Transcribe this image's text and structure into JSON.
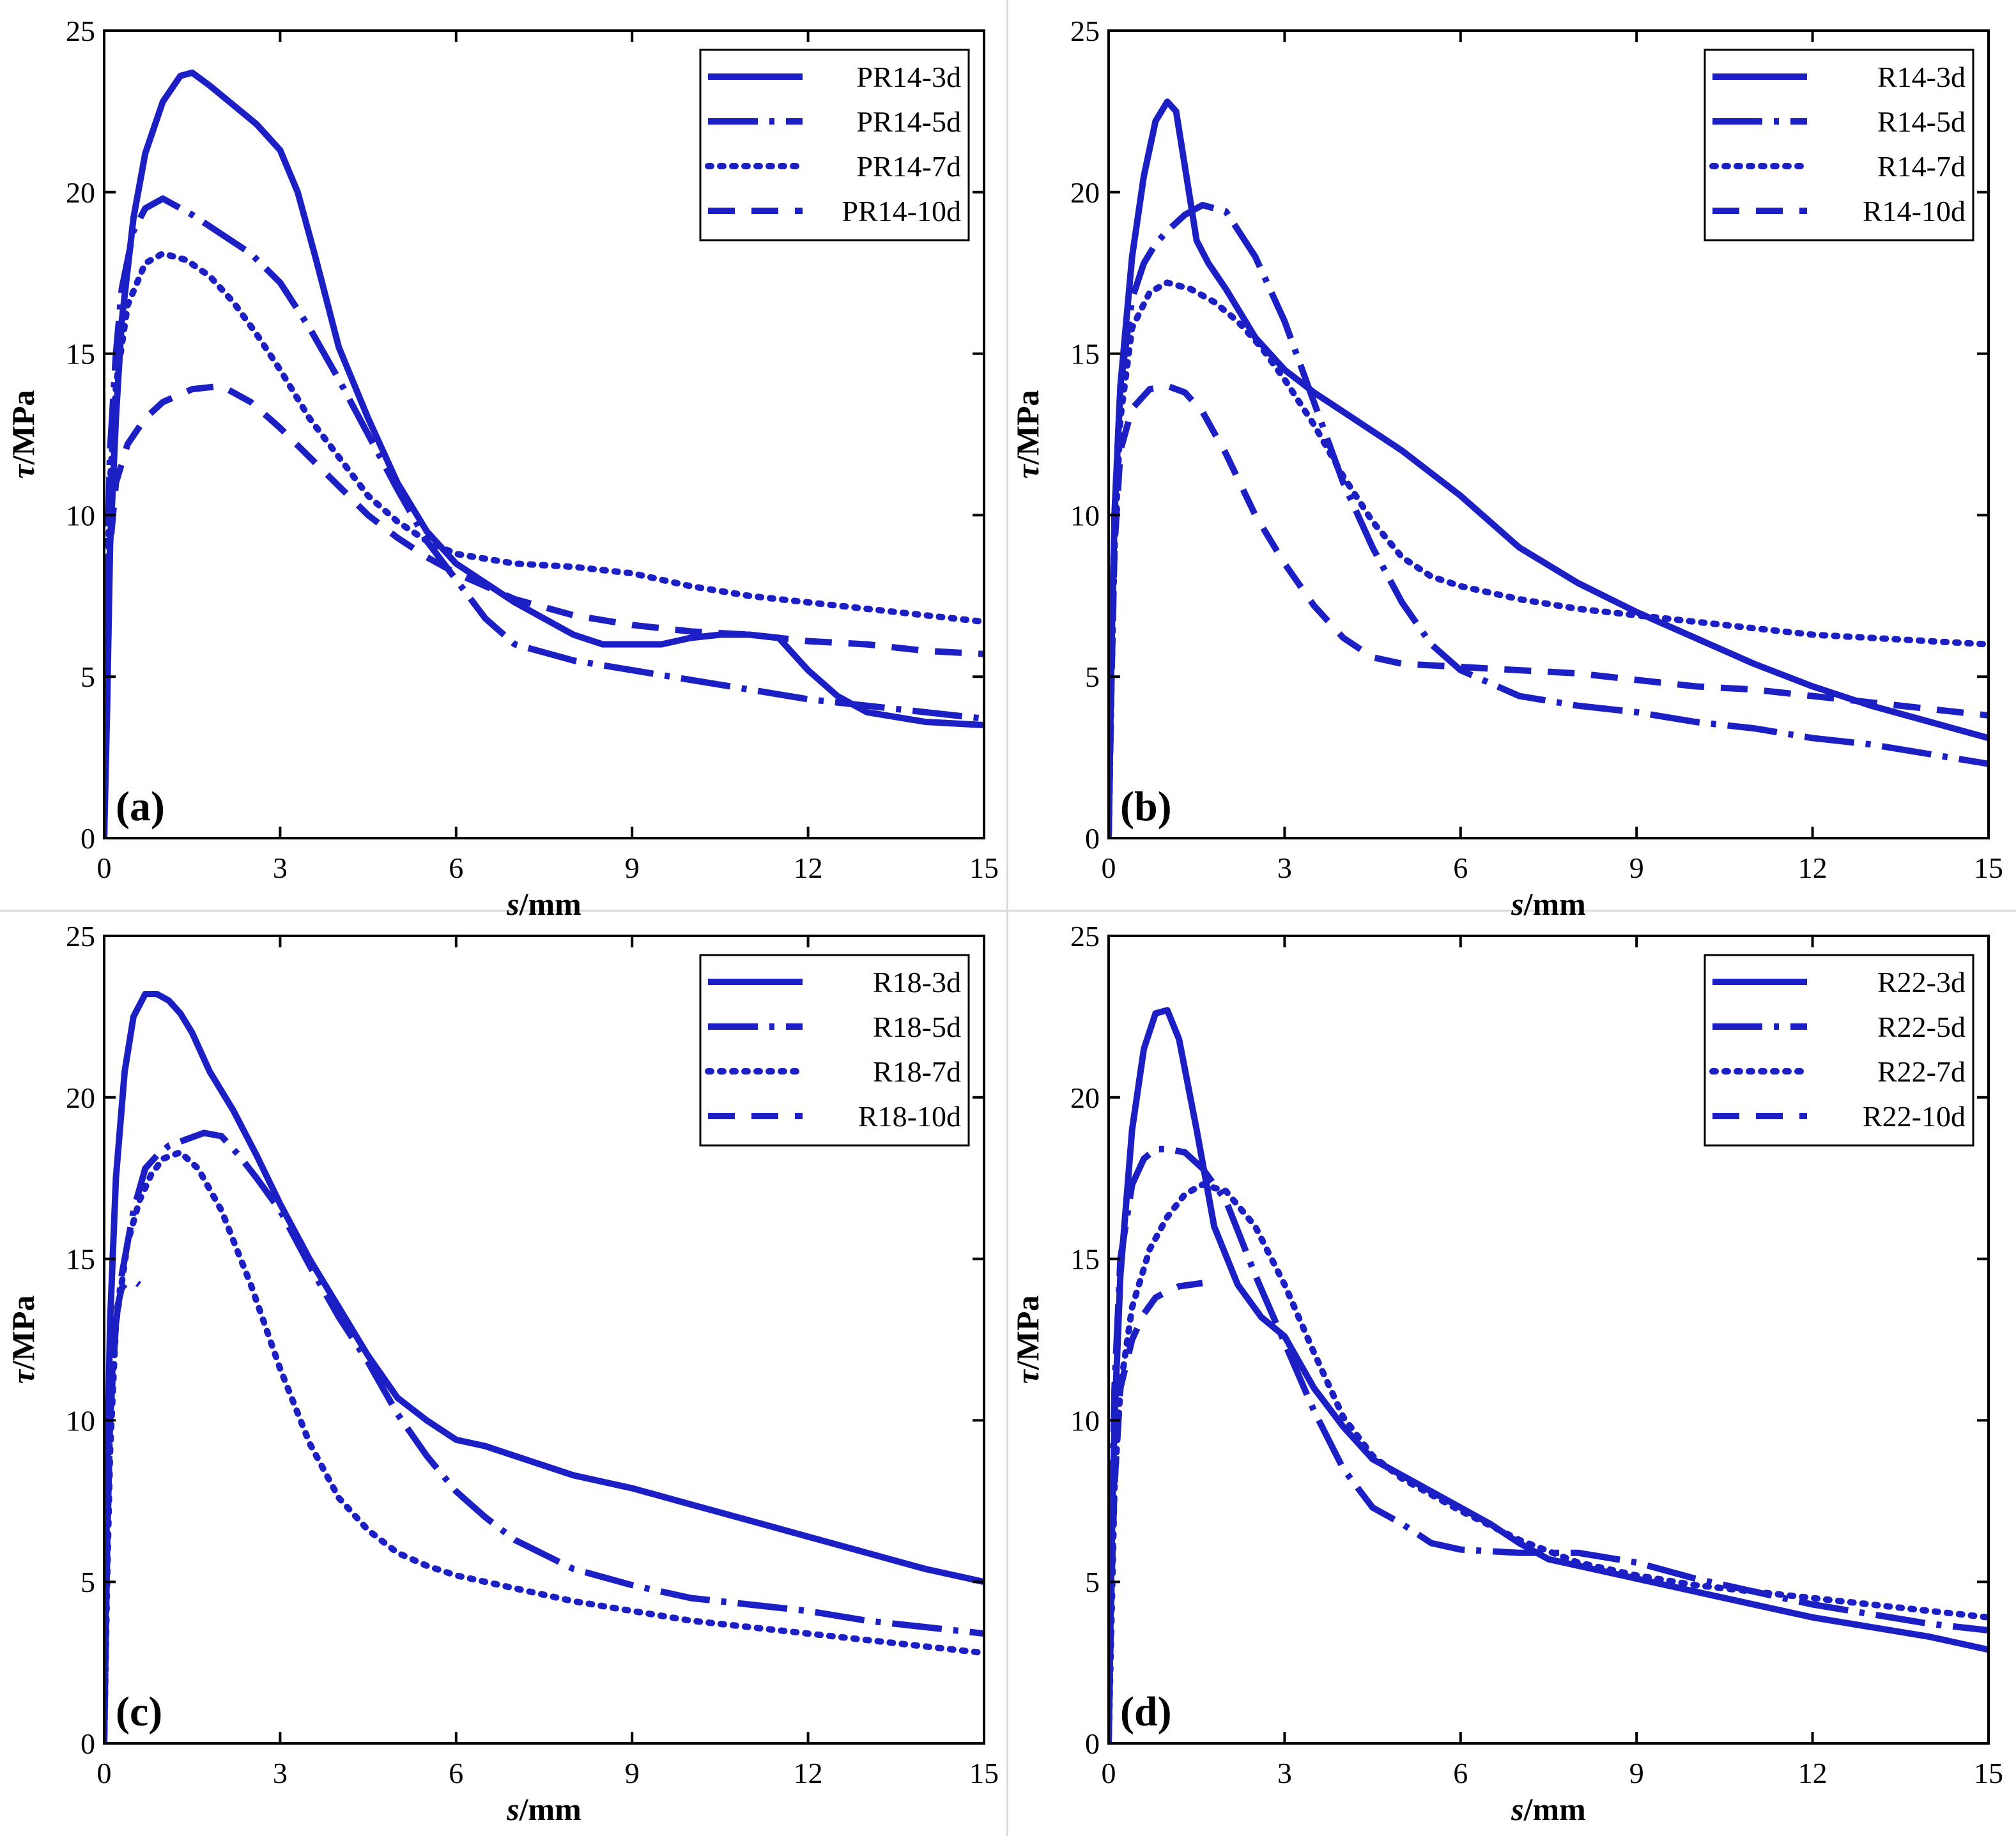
{
  "figure": {
    "line_color": "#1c1fc4",
    "axis_color": "#000000"
  },
  "chart_data": [
    {
      "panel_label": "(a)",
      "type": "line",
      "xlabel_var": "s",
      "xlabel_unit": "/mm",
      "ylabel_var": "τ",
      "ylabel_unit": "/MPa",
      "xlim": [
        0,
        15
      ],
      "ylim": [
        0,
        25
      ],
      "xticks": [
        "0",
        "3",
        "6",
        "9",
        "12",
        "15"
      ],
      "yticks": [
        "0",
        "5",
        "10",
        "15",
        "20",
        "25"
      ],
      "legend_position": "top-right",
      "series": [
        {
          "name": "PR14-3d",
          "style": "solid",
          "x": [
            0,
            0.05,
            0.1,
            0.2,
            0.3,
            0.5,
            0.7,
            1.0,
            1.3,
            1.5,
            1.8,
            2.2,
            2.6,
            3.0,
            3.3,
            3.6,
            4.0,
            4.5,
            5.0,
            5.5,
            6.0,
            6.5,
            7.0,
            7.5,
            8.0,
            8.5,
            9.0,
            9.5,
            10.0,
            10.5,
            11.0,
            11.5,
            12.0,
            12.5,
            13.0,
            14.0,
            15.0
          ],
          "y": [
            0,
            4,
            9,
            13,
            16,
            19.2,
            21.2,
            22.8,
            23.6,
            23.7,
            23.3,
            22.7,
            22.1,
            21.3,
            20,
            18,
            15.2,
            13,
            11,
            9.5,
            8.5,
            7.9,
            7.3,
            6.8,
            6.3,
            6.0,
            6.0,
            6.0,
            6.2,
            6.3,
            6.3,
            6.2,
            5.2,
            4.4,
            3.9,
            3.6,
            3.5
          ]
        },
        {
          "name": "PR14-5d",
          "style": "dashdot",
          "x": [
            0,
            0.05,
            0.1,
            0.2,
            0.3,
            0.5,
            0.7,
            1.0,
            1.5,
            2.0,
            2.5,
            3.0,
            3.5,
            4.0,
            4.5,
            5.0,
            5.5,
            6.0,
            6.5,
            7.0,
            8.0,
            9.0,
            10.0,
            11.0,
            12.0,
            13.0,
            14.0,
            15.0
          ],
          "y": [
            0,
            8,
            12,
            15,
            17,
            18.8,
            19.5,
            19.8,
            19.3,
            18.7,
            18.1,
            17.2,
            15.8,
            14.2,
            12.5,
            10.8,
            9.2,
            8,
            6.8,
            6,
            5.5,
            5.2,
            4.9,
            4.6,
            4.3,
            4.1,
            3.9,
            3.7
          ]
        },
        {
          "name": "PR14-7d",
          "style": "dotted",
          "x": [
            0,
            0.05,
            0.1,
            0.2,
            0.4,
            0.7,
            1.0,
            1.4,
            1.8,
            2.2,
            2.6,
            3.0,
            3.5,
            4.0,
            4.5,
            5.0,
            5.5,
            6.0,
            7.0,
            8.0,
            9.0,
            10.0,
            11.0,
            12.0,
            13.0,
            14.0,
            15.0
          ],
          "y": [
            0,
            7,
            11,
            14,
            16.5,
            17.8,
            18.1,
            17.9,
            17.4,
            16.6,
            15.6,
            14.5,
            13,
            11.8,
            10.6,
            9.8,
            9.2,
            8.8,
            8.5,
            8.4,
            8.2,
            7.8,
            7.5,
            7.3,
            7.1,
            6.9,
            6.7
          ]
        },
        {
          "name": "PR14-10d",
          "style": "dashed",
          "x": [
            0,
            0.05,
            0.1,
            0.2,
            0.4,
            0.7,
            1.0,
            1.5,
            2.0,
            2.5,
            3.0,
            3.5,
            4.0,
            4.5,
            5.0,
            5.5,
            6.0,
            6.5,
            7.0,
            8.0,
            9.0,
            10.0,
            11.0,
            12.0,
            13.0,
            14.0,
            15.0
          ],
          "y": [
            0,
            6,
            9,
            11,
            12.2,
            13,
            13.5,
            13.9,
            14,
            13.5,
            12.7,
            11.8,
            10.9,
            10,
            9.3,
            8.7,
            8.2,
            7.8,
            7.4,
            6.9,
            6.6,
            6.4,
            6.3,
            6.1,
            6.0,
            5.8,
            5.7
          ]
        }
      ]
    },
    {
      "panel_label": "(b)",
      "type": "line",
      "xlabel_var": "s",
      "xlabel_unit": "/mm",
      "ylabel_var": "τ",
      "ylabel_unit": "/MPa",
      "xlim": [
        0,
        15
      ],
      "ylim": [
        0,
        25
      ],
      "xticks": [
        "0",
        "3",
        "6",
        "9",
        "12",
        "15"
      ],
      "yticks": [
        "0",
        "5",
        "10",
        "15",
        "20",
        "25"
      ],
      "legend_position": "top-right",
      "series": [
        {
          "name": "R14-3d",
          "style": "solid",
          "x": [
            0,
            0.05,
            0.1,
            0.2,
            0.4,
            0.6,
            0.8,
            1.0,
            1.15,
            1.3,
            1.5,
            1.7,
            2.0,
            2.5,
            3.0,
            3.5,
            4.0,
            5.0,
            6.0,
            7.0,
            8.0,
            9.0,
            10.0,
            11.0,
            12.0,
            13.0,
            14.0,
            15.0
          ],
          "y": [
            0,
            6,
            10,
            14,
            18,
            20.5,
            22.2,
            22.8,
            22.5,
            20.8,
            18.5,
            17.8,
            17,
            15.5,
            14.5,
            13.8,
            13.2,
            12,
            10.6,
            9,
            7.9,
            7,
            6.2,
            5.4,
            4.7,
            4.1,
            3.6,
            3.1
          ]
        },
        {
          "name": "R14-5d",
          "style": "dashdot",
          "x": [
            0,
            0.05,
            0.1,
            0.2,
            0.4,
            0.6,
            0.8,
            1.0,
            1.3,
            1.6,
            2.0,
            2.5,
            3.0,
            3.5,
            4.0,
            4.5,
            5.0,
            5.5,
            6.0,
            7.0,
            8.0,
            9.0,
            10.0,
            11.0,
            12.0,
            13.0,
            14.0,
            15.0
          ],
          "y": [
            0,
            6,
            10,
            14,
            16.7,
            17.8,
            18.4,
            18.8,
            19.3,
            19.6,
            19.4,
            18,
            16,
            13.5,
            11,
            9,
            7.3,
            6,
            5.2,
            4.4,
            4.1,
            3.9,
            3.6,
            3.4,
            3.1,
            2.9,
            2.6,
            2.3
          ]
        },
        {
          "name": "R14-7d",
          "style": "dotted",
          "x": [
            0,
            0.05,
            0.1,
            0.2,
            0.4,
            0.7,
            1.0,
            1.4,
            1.8,
            2.2,
            2.6,
            3.0,
            3.5,
            4.0,
            4.5,
            5.0,
            5.5,
            6.0,
            7.0,
            8.0,
            9.0,
            10.0,
            11.0,
            12.0,
            13.0,
            14.0,
            15.0
          ],
          "y": [
            0,
            5,
            9,
            13,
            15.8,
            16.9,
            17.2,
            17,
            16.6,
            16,
            15.2,
            14.2,
            12.8,
            11.2,
            9.8,
            8.7,
            8.1,
            7.8,
            7.4,
            7.1,
            6.9,
            6.7,
            6.5,
            6.3,
            6.2,
            6.1,
            6.0
          ]
        },
        {
          "name": "R14-10d",
          "style": "dashed",
          "x": [
            0,
            0.05,
            0.1,
            0.2,
            0.4,
            0.7,
            1.0,
            1.3,
            1.6,
            2.0,
            2.5,
            3.0,
            3.5,
            4.0,
            4.5,
            5.0,
            5.5,
            6.0,
            7.0,
            8.0,
            9.0,
            10.0,
            11.0,
            12.0,
            13.0,
            14.0,
            15.0
          ],
          "y": [
            0,
            5,
            9,
            12,
            13.3,
            13.9,
            14,
            13.8,
            13.2,
            11.9,
            10,
            8.5,
            7.2,
            6.2,
            5.6,
            5.4,
            5.35,
            5.3,
            5.2,
            5.1,
            4.9,
            4.7,
            4.6,
            4.4,
            4.2,
            4.0,
            3.8
          ]
        }
      ]
    },
    {
      "panel_label": "(c)",
      "type": "line",
      "xlabel_var": "s",
      "xlabel_unit": "/mm",
      "ylabel_var": "τ",
      "ylabel_unit": "/MPa",
      "xlim": [
        0,
        15
      ],
      "ylim": [
        0,
        25
      ],
      "xticks": [
        "0",
        "3",
        "6",
        "9",
        "12",
        "15"
      ],
      "yticks": [
        "0",
        "5",
        "10",
        "15",
        "20",
        "25"
      ],
      "legend_position": "top-right",
      "series": [
        {
          "name": "R18-3d",
          "style": "solid",
          "x": [
            0,
            0.05,
            0.1,
            0.2,
            0.35,
            0.5,
            0.7,
            0.9,
            1.1,
            1.3,
            1.5,
            1.8,
            2.2,
            2.6,
            3.0,
            3.5,
            4.0,
            4.5,
            5.0,
            5.5,
            6.0,
            6.5,
            7.0,
            8.0,
            9.0,
            10.0,
            11.0,
            12.0,
            13.0,
            14.0,
            15.0
          ],
          "y": [
            0,
            8,
            13,
            17.5,
            20.8,
            22.5,
            23.2,
            23.2,
            23.0,
            22.6,
            22,
            20.8,
            19.6,
            18.2,
            16.7,
            15,
            13.5,
            12,
            10.7,
            10,
            9.4,
            9.2,
            8.9,
            8.3,
            7.9,
            7.4,
            6.9,
            6.4,
            5.9,
            5.4,
            5.0
          ]
        },
        {
          "name": "R18-5d",
          "style": "dashdot",
          "x": [
            0,
            0.05,
            0.1,
            0.2,
            0.3,
            0.5,
            0.7,
            0.9,
            1.1,
            1.4,
            1.7,
            2.0,
            2.3,
            2.6,
            3.0,
            3.5,
            4.0,
            4.5,
            5.0,
            5.5,
            6.0,
            6.5,
            7.0,
            8.0,
            9.0,
            10.0,
            11.0,
            12.0,
            13.0,
            14.0,
            15.0
          ],
          "y": [
            0,
            6,
            10,
            13,
            14.5,
            16.5,
            17.8,
            18.2,
            18.5,
            18.7,
            18.9,
            18.8,
            18.2,
            17.5,
            16.5,
            14.8,
            13.2,
            11.8,
            10.2,
            8.9,
            7.8,
            7,
            6.3,
            5.4,
            4.9,
            4.5,
            4.3,
            4.1,
            3.8,
            3.6,
            3.4
          ]
        },
        {
          "name": "R18-7d",
          "style": "dotted",
          "x": [
            0,
            0.05,
            0.1,
            0.2,
            0.4,
            0.6,
            0.8,
            1.0,
            1.3,
            1.6,
            2.0,
            2.5,
            3.0,
            3.5,
            4.0,
            4.5,
            5.0,
            5.5,
            6.0,
            7.0,
            8.0,
            9.0,
            10.0,
            11.0,
            12.0,
            13.0,
            14.0,
            15.0
          ],
          "y": [
            0,
            5,
            9,
            13,
            15.5,
            16.8,
            17.6,
            18.1,
            18.3,
            17.8,
            16.5,
            14.2,
            11.6,
            9.3,
            7.6,
            6.6,
            5.9,
            5.5,
            5.2,
            4.8,
            4.4,
            4.1,
            3.8,
            3.6,
            3.4,
            3.2,
            3.0,
            2.8
          ]
        },
        {
          "name": "R18-10d",
          "style": "dashed",
          "x": [
            0,
            0.05,
            0.1,
            0.15,
            0.2,
            0.3,
            0.45,
            0.6
          ],
          "y": [
            0,
            6,
            10,
            12,
            13.3,
            14.1,
            14.4,
            14.2
          ]
        }
      ]
    },
    {
      "panel_label": "(d)",
      "type": "line",
      "xlabel_var": "s",
      "xlabel_unit": "/mm",
      "ylabel_var": "τ",
      "ylabel_unit": "/MPa",
      "xlim": [
        0,
        15
      ],
      "ylim": [
        0,
        25
      ],
      "xticks": [
        "0",
        "3",
        "6",
        "9",
        "12",
        "15"
      ],
      "yticks": [
        "0",
        "5",
        "10",
        "15",
        "20",
        "25"
      ],
      "legend_position": "top-right",
      "series": [
        {
          "name": "R22-3d",
          "style": "solid",
          "x": [
            0,
            0.05,
            0.1,
            0.2,
            0.4,
            0.6,
            0.8,
            1.0,
            1.2,
            1.5,
            1.8,
            2.2,
            2.6,
            3.0,
            3.5,
            4.0,
            4.5,
            5.0,
            5.5,
            6.0,
            6.5,
            7.0,
            7.5,
            8.0,
            9.0,
            10.0,
            11.0,
            12.0,
            13.0,
            14.0,
            15.0
          ],
          "y": [
            0,
            6,
            10,
            14.5,
            19,
            21.5,
            22.6,
            22.7,
            21.8,
            19,
            16,
            14.2,
            13.2,
            12.6,
            11,
            9.8,
            8.8,
            8.3,
            7.8,
            7.3,
            6.8,
            6.2,
            5.7,
            5.5,
            5.1,
            4.7,
            4.3,
            3.9,
            3.6,
            3.3,
            2.9
          ]
        },
        {
          "name": "R22-5d",
          "style": "dashdot",
          "x": [
            0,
            0.05,
            0.1,
            0.2,
            0.4,
            0.6,
            0.8,
            1.0,
            1.3,
            1.6,
            2.0,
            2.5,
            3.0,
            3.5,
            4.0,
            4.5,
            5.0,
            5.5,
            6.0,
            6.5,
            7.0,
            7.5,
            8.0,
            9.0,
            10.0,
            11.0,
            12.0,
            13.0,
            14.0,
            15.0
          ],
          "y": [
            0,
            7,
            11,
            15,
            17.3,
            18.1,
            18.4,
            18.4,
            18.3,
            17.8,
            16.8,
            14.5,
            12.4,
            10.3,
            8.5,
            7.3,
            6.8,
            6.2,
            6.0,
            5.95,
            5.9,
            5.9,
            5.9,
            5.6,
            5.1,
            4.7,
            4.3,
            4.0,
            3.7,
            3.5
          ]
        },
        {
          "name": "R22-7d",
          "style": "dotted",
          "x": [
            0,
            0.05,
            0.1,
            0.2,
            0.4,
            0.7,
            1.0,
            1.3,
            1.6,
            2.0,
            2.5,
            3.0,
            3.5,
            4.0,
            4.5,
            5.0,
            5.5,
            6.0,
            7.0,
            8.0,
            9.0,
            10.0,
            11.0,
            12.0,
            13.0,
            14.0,
            15.0
          ],
          "y": [
            0,
            4,
            8,
            11,
            13.5,
            15.3,
            16.3,
            17,
            17.3,
            17.1,
            16,
            14.2,
            12.1,
            10.1,
            8.9,
            8.2,
            7.7,
            7.2,
            6.3,
            5.6,
            5.2,
            4.9,
            4.7,
            4.5,
            4.3,
            4.1,
            3.9
          ]
        },
        {
          "name": "R22-10d",
          "style": "dashed",
          "x": [
            0,
            0.05,
            0.1,
            0.2,
            0.4,
            0.6,
            0.8,
            1.0,
            1.2,
            1.4,
            1.6
          ],
          "y": [
            0,
            5,
            8,
            11,
            12.5,
            13.3,
            13.8,
            14,
            14.15,
            14.2,
            14.25
          ]
        }
      ]
    }
  ]
}
